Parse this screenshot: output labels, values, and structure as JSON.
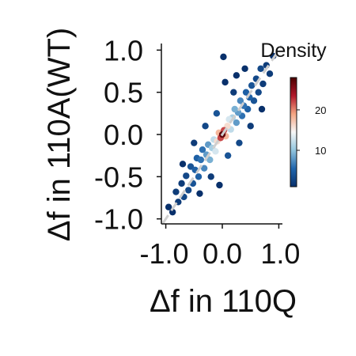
{
  "chart_data": {
    "type": "scatter",
    "title": "",
    "xlabel": "Δf in 110Q",
    "ylabel": "Δf in 110A(WT)",
    "xlim": [
      -1.05,
      1.05
    ],
    "ylim": [
      -1.05,
      1.05
    ],
    "x_ticks": [
      -1.0,
      0.0,
      1.0
    ],
    "x_tick_labels": [
      "-1.0",
      "0.0",
      "1.0"
    ],
    "y_ticks": [
      -1.0,
      -0.5,
      0.0,
      0.5,
      1.0
    ],
    "y_tick_labels": [
      "-1.0",
      "-0.5",
      "0.0",
      "0.5",
      "1.0"
    ],
    "grid": false,
    "reference_line": {
      "slope": 1,
      "intercept": 0,
      "style": "dashed",
      "color": "#cccccc"
    },
    "colorbar": {
      "label": "Density",
      "ticks": [
        10,
        20
      ],
      "tick_labels": [
        "10",
        "20"
      ],
      "range": [
        1,
        28
      ],
      "colormap": [
        "#08306b",
        "#2166ac",
        "#92c5de",
        "#f7f7f7",
        "#f4a582",
        "#b2182b",
        "#4a0000"
      ]
    },
    "points": [
      {
        "x": -0.95,
        "y": -0.86,
        "d": 1
      },
      {
        "x": -0.88,
        "y": -0.92,
        "d": 1
      },
      {
        "x": -0.82,
        "y": -0.68,
        "d": 2
      },
      {
        "x": -0.78,
        "y": -0.8,
        "d": 2
      },
      {
        "x": -0.72,
        "y": -0.58,
        "d": 2
      },
      {
        "x": -0.68,
        "y": -0.74,
        "d": 3
      },
      {
        "x": -0.64,
        "y": -0.49,
        "d": 3
      },
      {
        "x": -0.6,
        "y": -0.66,
        "d": 3
      },
      {
        "x": -0.56,
        "y": -0.38,
        "d": 4
      },
      {
        "x": -0.52,
        "y": -0.58,
        "d": 4
      },
      {
        "x": -0.48,
        "y": -0.42,
        "d": 5
      },
      {
        "x": -0.45,
        "y": -0.28,
        "d": 5
      },
      {
        "x": -0.42,
        "y": -0.5,
        "d": 5
      },
      {
        "x": -0.38,
        "y": -0.3,
        "d": 6
      },
      {
        "x": -0.35,
        "y": -0.18,
        "d": 6
      },
      {
        "x": -0.32,
        "y": -0.4,
        "d": 7
      },
      {
        "x": -0.28,
        "y": -0.24,
        "d": 8
      },
      {
        "x": -0.25,
        "y": -0.12,
        "d": 8
      },
      {
        "x": -0.22,
        "y": -0.3,
        "d": 9
      },
      {
        "x": -0.18,
        "y": -0.16,
        "d": 11
      },
      {
        "x": -0.15,
        "y": -0.06,
        "d": 12
      },
      {
        "x": -0.12,
        "y": -0.2,
        "d": 13
      },
      {
        "x": -0.09,
        "y": -0.08,
        "d": 16
      },
      {
        "x": -0.06,
        "y": 0.02,
        "d": 18
      },
      {
        "x": -0.03,
        "y": -0.04,
        "d": 22
      },
      {
        "x": 0.0,
        "y": 0.0,
        "d": 27
      },
      {
        "x": 0.03,
        "y": 0.05,
        "d": 22
      },
      {
        "x": 0.06,
        "y": -0.02,
        "d": 18
      },
      {
        "x": 0.09,
        "y": 0.1,
        "d": 16
      },
      {
        "x": 0.12,
        "y": 0.18,
        "d": 13
      },
      {
        "x": 0.15,
        "y": 0.06,
        "d": 12
      },
      {
        "x": 0.18,
        "y": 0.2,
        "d": 11
      },
      {
        "x": 0.22,
        "y": 0.3,
        "d": 9
      },
      {
        "x": 0.25,
        "y": 0.14,
        "d": 8
      },
      {
        "x": 0.28,
        "y": 0.26,
        "d": 8
      },
      {
        "x": 0.32,
        "y": 0.4,
        "d": 7
      },
      {
        "x": 0.35,
        "y": 0.22,
        "d": 6
      },
      {
        "x": 0.38,
        "y": 0.34,
        "d": 6
      },
      {
        "x": 0.42,
        "y": 0.5,
        "d": 5
      },
      {
        "x": 0.45,
        "y": 0.3,
        "d": 5
      },
      {
        "x": 0.48,
        "y": 0.44,
        "d": 5
      },
      {
        "x": 0.52,
        "y": 0.58,
        "d": 4
      },
      {
        "x": 0.56,
        "y": 0.4,
        "d": 4
      },
      {
        "x": 0.6,
        "y": 0.66,
        "d": 3
      },
      {
        "x": 0.64,
        "y": 0.5,
        "d": 3
      },
      {
        "x": 0.68,
        "y": 0.78,
        "d": 3
      },
      {
        "x": 0.72,
        "y": 0.6,
        "d": 2
      },
      {
        "x": 0.78,
        "y": 0.82,
        "d": 2
      },
      {
        "x": 0.84,
        "y": 0.72,
        "d": 2
      },
      {
        "x": 0.9,
        "y": 0.93,
        "d": 1
      },
      {
        "x": -0.3,
        "y": 0.1,
        "d": 3
      },
      {
        "x": 0.3,
        "y": -0.1,
        "d": 3
      },
      {
        "x": -0.1,
        "y": 0.25,
        "d": 4
      },
      {
        "x": 0.1,
        "y": -0.25,
        "d": 4
      },
      {
        "x": -0.5,
        "y": -0.1,
        "d": 2
      },
      {
        "x": 0.5,
        "y": 0.1,
        "d": 2
      },
      {
        "x": -0.2,
        "y": -0.5,
        "d": 2
      },
      {
        "x": 0.2,
        "y": 0.5,
        "d": 2
      },
      {
        "x": 0.05,
        "y": 0.62,
        "d": 1
      },
      {
        "x": -0.05,
        "y": -0.6,
        "d": 1
      },
      {
        "x": 0.4,
        "y": 0.78,
        "d": 1
      },
      {
        "x": -0.4,
        "y": -0.7,
        "d": 1
      },
      {
        "x": 0.7,
        "y": 0.3,
        "d": 1
      },
      {
        "x": -0.7,
        "y": -0.35,
        "d": 1
      },
      {
        "x": 0.02,
        "y": 0.92,
        "d": 1
      },
      {
        "x": 0.25,
        "y": 0.7,
        "d": 1
      }
    ]
  }
}
